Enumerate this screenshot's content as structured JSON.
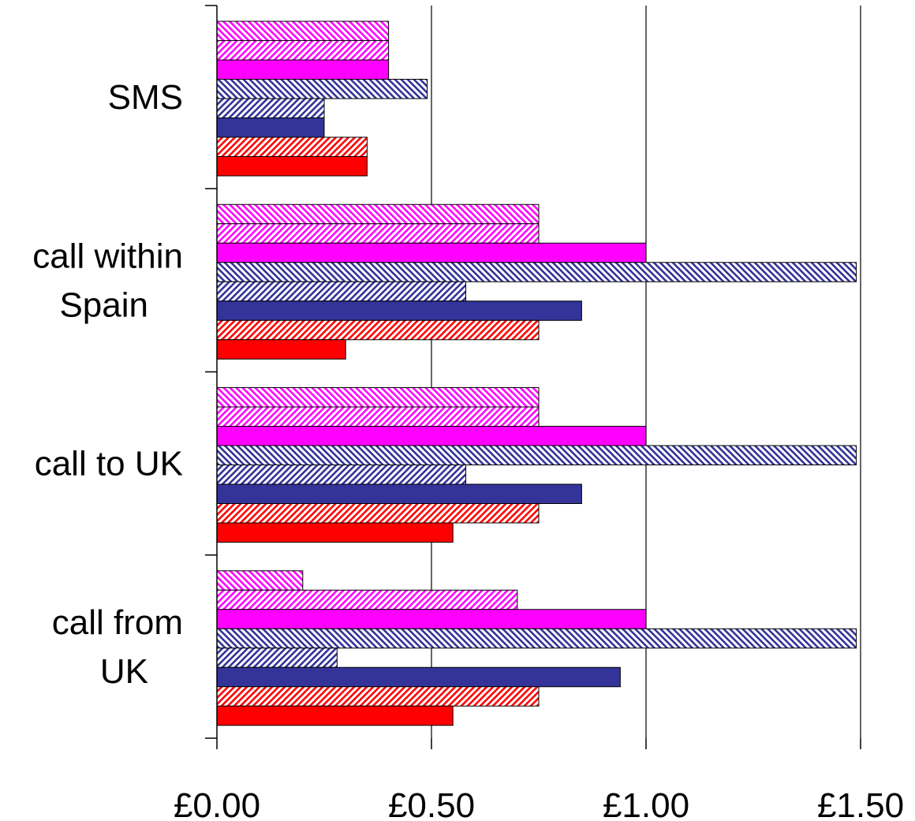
{
  "chart_data": {
    "type": "bar",
    "orientation": "horizontal",
    "categories": [
      "SMS",
      "call within Spain",
      "call to UK",
      "call from UK"
    ],
    "category_label_lines": [
      [
        "SMS"
      ],
      [
        "call within",
        "Spain"
      ],
      [
        "call to UK"
      ],
      [
        "call from",
        "UK"
      ]
    ],
    "series": [
      {
        "color": "#FF00FF",
        "fill": "hatch-down",
        "values": [
          0.4,
          0.75,
          0.75,
          0.2
        ]
      },
      {
        "color": "#FF00FF",
        "fill": "hatch-up",
        "values": [
          0.4,
          0.75,
          0.75,
          0.7
        ]
      },
      {
        "color": "#FF00FF",
        "fill": "solid",
        "values": [
          0.4,
          1.0,
          1.0,
          1.0
        ]
      },
      {
        "color": "#333399",
        "fill": "hatch-down",
        "values": [
          0.49,
          1.49,
          1.49,
          1.49
        ]
      },
      {
        "color": "#333399",
        "fill": "hatch-up",
        "values": [
          0.25,
          0.58,
          0.58,
          0.28
        ]
      },
      {
        "color": "#333399",
        "fill": "solid",
        "values": [
          0.25,
          0.85,
          0.85,
          0.94
        ]
      },
      {
        "color": "#FF0000",
        "fill": "hatch-up",
        "values": [
          0.35,
          0.75,
          0.75,
          0.75
        ]
      },
      {
        "color": "#FF0000",
        "fill": "solid",
        "values": [
          0.35,
          0.3,
          0.55,
          0.55
        ]
      }
    ],
    "xlim": [
      0,
      1.5
    ],
    "xticks": [
      0,
      0.5,
      1.0,
      1.5
    ],
    "xtick_labels": [
      "£0.00",
      "£0.50",
      "£1.00",
      "£1.50"
    ],
    "grid": "vertical-major",
    "legend": "none",
    "title": "",
    "xlabel": "",
    "ylabel": ""
  }
}
